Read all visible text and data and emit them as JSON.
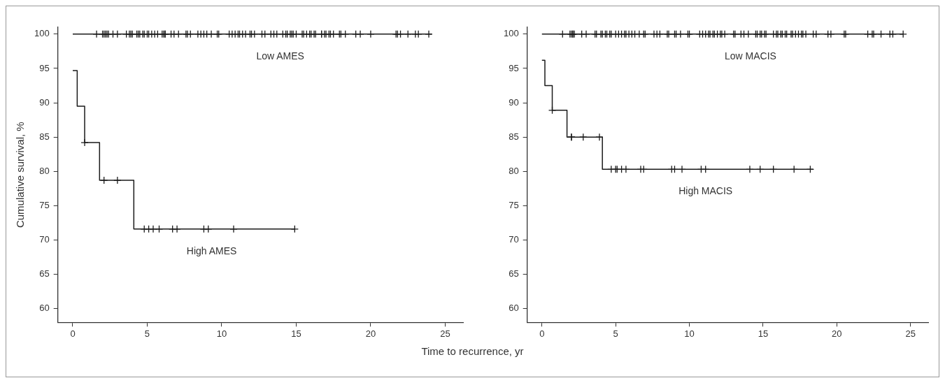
{
  "chart_data": [
    {
      "type": "step",
      "ylabel": "Cumulative survival, %",
      "xlabel": "Time to recurrence, yr",
      "xlim": [
        -1,
        26.2
      ],
      "ylim": [
        58,
        101
      ],
      "xticks": [
        0,
        5,
        10,
        15,
        20,
        25
      ],
      "yticks": [
        60,
        65,
        70,
        75,
        80,
        85,
        90,
        95,
        100
      ],
      "grid": false,
      "legend": false,
      "marker": "none",
      "line_style": "solid",
      "series": [
        {
          "name": "Low AMES",
          "color": "#1a1a1a",
          "x": [
            0,
            24.1
          ],
          "values": [
            100,
            100
          ]
        },
        {
          "name": "High AMES",
          "color": "#1a1a1a",
          "x": [
            0,
            0.3,
            0.8,
            1.8,
            4.1,
            14.9
          ],
          "values": [
            94.7,
            89.5,
            84.2,
            78.7,
            71.6,
            71.6
          ]
        },
        {
          "type": "scatter",
          "marker": "cross",
          "color": "#1a1a1a",
          "x": [
            1.6,
            2.0,
            2.1,
            2.2,
            2.3,
            2.4,
            2.7,
            3.0,
            3.6,
            3.8,
            3.9,
            4.0,
            4.3,
            4.4,
            4.5,
            4.7,
            4.8,
            5.0,
            5.1,
            5.3,
            5.5,
            5.7,
            6.0,
            6.1,
            6.2,
            6.2,
            6.6,
            6.8,
            7.1,
            7.6,
            7.7,
            7.9,
            8.4,
            8.6,
            8.8,
            9.0,
            9.3,
            9.7,
            9.8,
            10.5,
            10.7,
            10.9,
            11.1,
            11.2,
            11.4,
            11.6,
            11.9,
            12.0,
            12.2,
            12.7,
            12.9,
            13.3,
            13.5,
            13.7,
            14.1,
            14.3,
            14.4,
            14.6,
            14.7,
            14.8,
            15.0,
            15.4,
            15.5,
            15.7,
            15.9,
            16.0,
            16.2,
            16.3,
            16.7,
            16.7,
            16.9,
            17.0,
            17.2,
            17.3,
            17.5,
            17.9,
            18.0,
            18.3,
            19.0,
            19.3,
            20.0,
            21.7,
            21.8,
            22.0,
            22.5,
            23.0,
            23.2,
            23.9
          ],
          "values": [
            100,
            100,
            100,
            100,
            100,
            100,
            100,
            100,
            100,
            100,
            100,
            100,
            100,
            100,
            100,
            100,
            100,
            100,
            100,
            100,
            100,
            100,
            100,
            100,
            100,
            100,
            100,
            100,
            100,
            100,
            100,
            100,
            100,
            100,
            100,
            100,
            100,
            100,
            100,
            100,
            100,
            100,
            100,
            100,
            100,
            100,
            100,
            100,
            100,
            100,
            100,
            100,
            100,
            100,
            100,
            100,
            100,
            100,
            100,
            100,
            100,
            100,
            100,
            100,
            100,
            100,
            100,
            100,
            100,
            100,
            100,
            100,
            100,
            100,
            100,
            100,
            100,
            100,
            100,
            100,
            100,
            100,
            100,
            100,
            100,
            100,
            100,
            100
          ]
        },
        {
          "type": "scatter",
          "marker": "cross",
          "color": "#1a1a1a",
          "x": [
            0.8,
            2.1,
            3.0,
            4.8,
            5.1,
            5.4,
            5.8,
            6.7,
            7.0,
            8.8,
            9.1,
            10.8,
            14.9
          ],
          "values": [
            84.2,
            78.7,
            78.7,
            71.6,
            71.6,
            71.6,
            71.6,
            71.6,
            71.6,
            71.6,
            71.6,
            71.6,
            71.6
          ]
        }
      ]
    },
    {
      "type": "step",
      "xlim": [
        -1,
        26.2
      ],
      "ylim": [
        58,
        101
      ],
      "xticks": [
        0,
        5,
        10,
        15,
        20,
        25
      ],
      "yticks": [
        60,
        65,
        70,
        75,
        80,
        85,
        90,
        95,
        100
      ],
      "grid": false,
      "legend": false,
      "marker": "none",
      "line_style": "solid",
      "series": [
        {
          "name": "Low MACIS",
          "color": "#1a1a1a",
          "x": [
            0,
            24.5
          ],
          "values": [
            100,
            100
          ]
        },
        {
          "name": "High MACIS",
          "color": "#1a1a1a",
          "x": [
            0,
            0.2,
            0.7,
            1.7,
            4.1,
            18.4
          ],
          "values": [
            96.2,
            92.5,
            88.9,
            85.0,
            80.3,
            80.3
          ]
        },
        {
          "type": "scatter",
          "marker": "cross",
          "color": "#1a1a1a",
          "x": [
            1.4,
            1.9,
            2.0,
            2.1,
            2.1,
            2.2,
            2.7,
            3.0,
            3.6,
            3.7,
            4.0,
            4.1,
            4.3,
            4.4,
            4.6,
            4.7,
            5.0,
            5.2,
            5.4,
            5.6,
            5.7,
            5.9,
            6.1,
            6.3,
            6.6,
            6.9,
            7.0,
            7.6,
            7.8,
            8.0,
            8.5,
            8.6,
            9.0,
            9.1,
            9.4,
            9.9,
            10.0,
            10.7,
            10.9,
            11.1,
            11.3,
            11.4,
            11.6,
            11.7,
            11.9,
            12.1,
            12.2,
            12.4,
            13.0,
            13.1,
            13.5,
            13.7,
            14.0,
            14.5,
            14.6,
            14.8,
            14.9,
            15.1,
            15.2,
            15.7,
            15.9,
            16.0,
            16.2,
            16.3,
            16.5,
            16.6,
            16.9,
            17.0,
            17.2,
            17.4,
            17.6,
            17.7,
            17.9,
            18.4,
            18.6,
            19.4,
            19.6,
            20.5,
            20.6,
            22.1,
            22.4,
            22.5,
            23.0,
            23.6,
            23.8,
            24.5
          ],
          "values": [
            100,
            100,
            100,
            100,
            100,
            100,
            100,
            100,
            100,
            100,
            100,
            100,
            100,
            100,
            100,
            100,
            100,
            100,
            100,
            100,
            100,
            100,
            100,
            100,
            100,
            100,
            100,
            100,
            100,
            100,
            100,
            100,
            100,
            100,
            100,
            100,
            100,
            100,
            100,
            100,
            100,
            100,
            100,
            100,
            100,
            100,
            100,
            100,
            100,
            100,
            100,
            100,
            100,
            100,
            100,
            100,
            100,
            100,
            100,
            100,
            100,
            100,
            100,
            100,
            100,
            100,
            100,
            100,
            100,
            100,
            100,
            100,
            100,
            100,
            100,
            100,
            100,
            100,
            100,
            100,
            100,
            100,
            100,
            100,
            100,
            100
          ]
        },
        {
          "type": "scatter",
          "marker": "cross",
          "color": "#1a1a1a",
          "x": [
            0.7,
            2.0,
            2.0,
            2.8,
            3.9,
            4.7,
            5.0,
            5.1,
            5.4,
            5.7,
            6.7,
            6.9,
            8.8,
            9.0,
            9.5,
            10.8,
            11.1,
            14.1,
            14.8,
            15.7,
            17.1,
            18.2
          ],
          "values": [
            88.9,
            85.0,
            85.0,
            85.0,
            85.0,
            80.3,
            80.3,
            80.3,
            80.3,
            80.3,
            80.3,
            80.3,
            80.3,
            80.3,
            80.3,
            80.3,
            80.3,
            80.3,
            80.3,
            80.3,
            80.3,
            80.3
          ]
        }
      ]
    }
  ]
}
